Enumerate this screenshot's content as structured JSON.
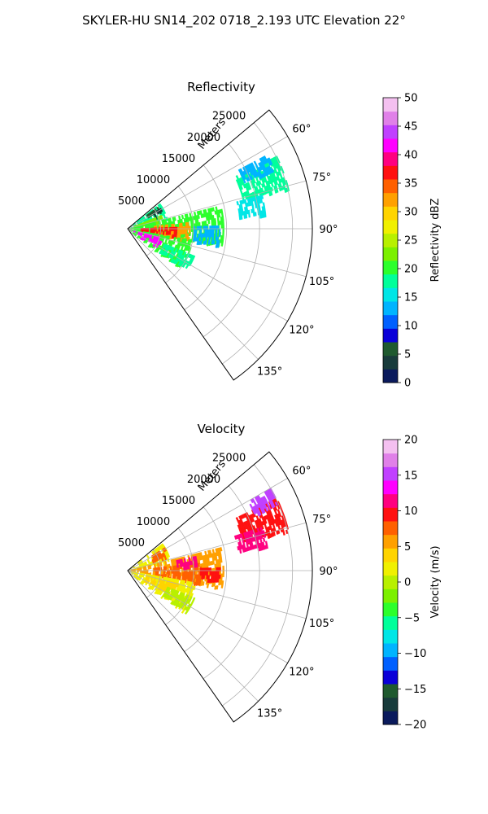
{
  "page": {
    "title": "SKYLER-HU  SN14_202  0718_2.193 UTC Elevation 22°"
  },
  "chart_data": [
    {
      "type": "heatmap",
      "subtype": "polar-sector",
      "title": "Reflectivity",
      "radial_label": "Meters",
      "radial_ticks": [
        5000,
        10000,
        15000,
        20000,
        25000
      ],
      "radial_tick_labels": [
        "5000",
        "10000",
        "15000",
        "20000",
        "25000"
      ],
      "r_max": 28000,
      "theta_range_deg": [
        50,
        145
      ],
      "theta_ticks": [
        60,
        75,
        90,
        105,
        120,
        135
      ],
      "theta_tick_labels": [
        "60°",
        "75°",
        "90°",
        "105°",
        "120°",
        "135°"
      ],
      "grid": true,
      "colorbar": {
        "label": "Reflectivity dBZ",
        "range": [
          0,
          50
        ],
        "ticks": [
          0,
          5,
          10,
          15,
          20,
          25,
          30,
          35,
          40,
          45,
          50
        ],
        "tick_labels": [
          "0",
          "5",
          "10",
          "15",
          "20",
          "25",
          "30",
          "35",
          "40",
          "45",
          "50"
        ],
        "colors": [
          "#0a1a5c",
          "#183b3b",
          "#1f5a2f",
          "#0a00d8",
          "#0060ff",
          "#00b4ff",
          "#00e6e6",
          "#00ff9a",
          "#2cff2c",
          "#7cf000",
          "#b8f000",
          "#f0f000",
          "#ffd400",
          "#ffa000",
          "#ff6000",
          "#ff1010",
          "#ff0080",
          "#ff00ff",
          "#c040ff",
          "#e080e8",
          "#f4c0f0"
        ]
      },
      "echoes": [
        {
          "theta": [
            52,
            76
          ],
          "r": [
            0,
            6200
          ],
          "value": 18
        },
        {
          "theta": [
            54,
            60
          ],
          "r": [
            3500,
            5600
          ],
          "value": 6
        },
        {
          "theta": [
            58,
            66
          ],
          "r": [
            4500,
            6000
          ],
          "value": 4
        },
        {
          "theta": [
            68,
            76
          ],
          "r": [
            1000,
            5500
          ],
          "value": 22
        },
        {
          "theta": [
            76,
            100
          ],
          "r": [
            0,
            14500
          ],
          "value": 20
        },
        {
          "theta": [
            84,
            100
          ],
          "r": [
            4000,
            9500
          ],
          "value": 33
        },
        {
          "theta": [
            88,
            98
          ],
          "r": [
            2000,
            7500
          ],
          "value": 38
        },
        {
          "theta": [
            100,
            125
          ],
          "r": [
            0,
            10000
          ],
          "value": 21
        },
        {
          "theta": [
            104,
            118
          ],
          "r": [
            1000,
            5500
          ],
          "value": 42
        },
        {
          "theta": [
            112,
            124
          ],
          "r": [
            6000,
            11000
          ],
          "value": 19
        },
        {
          "theta": [
            88,
            100
          ],
          "r": [
            10000,
            14000
          ],
          "value": 13
        },
        {
          "theta": [
            64,
            76
          ],
          "r": [
            18000,
            25000
          ],
          "value": 18
        },
        {
          "theta": [
            76,
            84
          ],
          "r": [
            17000,
            21000
          ],
          "value": 16
        },
        {
          "theta": [
            62,
            68
          ],
          "r": [
            19000,
            24000
          ],
          "value": 14
        }
      ]
    },
    {
      "type": "heatmap",
      "subtype": "polar-sector",
      "title": "Velocity",
      "radial_label": "Meters",
      "radial_ticks": [
        5000,
        10000,
        15000,
        20000,
        25000
      ],
      "radial_tick_labels": [
        "5000",
        "10000",
        "15000",
        "20000",
        "25000"
      ],
      "r_max": 28000,
      "theta_range_deg": [
        50,
        145
      ],
      "theta_ticks": [
        60,
        75,
        90,
        105,
        120,
        135
      ],
      "theta_tick_labels": [
        "60°",
        "75°",
        "90°",
        "105°",
        "120°",
        "135°"
      ],
      "grid": true,
      "colorbar": {
        "label": "Velocity (m/s)",
        "range": [
          -20,
          20
        ],
        "ticks": [
          -20,
          -15,
          -10,
          -5,
          0,
          5,
          10,
          15,
          20
        ],
        "tick_labels": [
          "−20",
          "−15",
          "−10",
          "−5",
          "0",
          "5",
          "10",
          "15",
          "20"
        ],
        "colors": [
          "#0a1a5c",
          "#183b3b",
          "#1f5a2f",
          "#0a00d8",
          "#0060ff",
          "#00b4ff",
          "#00e6e6",
          "#00ff9a",
          "#2cff2c",
          "#7cf000",
          "#b8f000",
          "#f0f000",
          "#ffd400",
          "#ffa000",
          "#ff6000",
          "#ff1010",
          "#ff0080",
          "#ff00ff",
          "#c040ff",
          "#e080e8",
          "#f4c0f0"
        ]
      },
      "echoes": [
        {
          "theta": [
            52,
            76
          ],
          "r": [
            0,
            6500
          ],
          "value": 2
        },
        {
          "theta": [
            58,
            70
          ],
          "r": [
            4000,
            6500
          ],
          "value": 8
        },
        {
          "theta": [
            76,
            100
          ],
          "r": [
            0,
            14500
          ],
          "value": 5
        },
        {
          "theta": [
            84,
            100
          ],
          "r": [
            4000,
            11000
          ],
          "value": 7
        },
        {
          "theta": [
            78,
            86
          ],
          "r": [
            7500,
            10500
          ],
          "value": 12
        },
        {
          "theta": [
            88,
            96
          ],
          "r": [
            11000,
            14000
          ],
          "value": 9
        },
        {
          "theta": [
            100,
            125
          ],
          "r": [
            0,
            10500
          ],
          "value": 1
        },
        {
          "theta": [
            104,
            116
          ],
          "r": [
            3000,
            8000
          ],
          "value": 3
        },
        {
          "theta": [
            112,
            124
          ],
          "r": [
            6500,
            11000
          ],
          "value": 0
        },
        {
          "theta": [
            64,
            76
          ],
          "r": [
            18000,
            25000
          ],
          "value": 9
        },
        {
          "theta": [
            60,
            66
          ],
          "r": [
            21000,
            25000
          ],
          "value": 15
        },
        {
          "theta": [
            72,
            80
          ],
          "r": [
            17000,
            21500
          ],
          "value": 12
        }
      ]
    }
  ]
}
